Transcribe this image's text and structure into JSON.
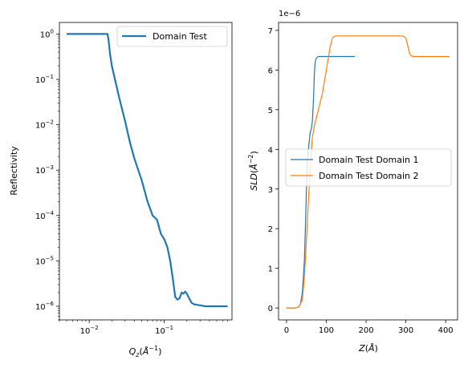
{
  "chart_data": [
    {
      "type": "line",
      "title": "",
      "xlabel": "Q_z(Å^-1)",
      "ylabel": "Reflectivity",
      "xscale": "log",
      "yscale": "log",
      "xlim": [
        0.004,
        0.8
      ],
      "ylim": [
        5e-07,
        1.8
      ],
      "x_ticks": [
        {
          "value": 0.01,
          "base": "10",
          "exp": "−2"
        },
        {
          "value": 0.1,
          "base": "10",
          "exp": "−1"
        }
      ],
      "y_ticks": [
        {
          "value": 1e-06,
          "base": "10",
          "exp": "−6"
        },
        {
          "value": 1e-05,
          "base": "10",
          "exp": "−5"
        },
        {
          "value": 0.0001,
          "base": "10",
          "exp": "−4"
        },
        {
          "value": 0.001,
          "base": "10",
          "exp": "−3"
        },
        {
          "value": 0.01,
          "base": "10",
          "exp": "−2"
        },
        {
          "value": 0.1,
          "base": "10",
          "exp": "−1"
        },
        {
          "value": 1,
          "base": "10",
          "exp": "0"
        }
      ],
      "legend": "upper right",
      "grid": false,
      "series": [
        {
          "name": "Domain Test",
          "color": "#1f77b4",
          "x": [
            0.005,
            0.008,
            0.012,
            0.016,
            0.0175,
            0.018,
            0.019,
            0.02,
            0.022,
            0.025,
            0.03,
            0.035,
            0.04,
            0.05,
            0.06,
            0.065,
            0.07,
            0.075,
            0.08,
            0.09,
            0.1,
            0.11,
            0.12,
            0.13,
            0.14,
            0.15,
            0.16,
            0.17,
            0.18,
            0.185,
            0.19,
            0.2,
            0.21,
            0.22,
            0.23,
            0.25,
            0.3,
            0.35,
            0.4,
            0.5,
            0.6,
            0.7
          ],
          "y": [
            1,
            1,
            1,
            1,
            1,
            0.8,
            0.35,
            0.2,
            0.1,
            0.04,
            0.012,
            0.004,
            0.0018,
            0.0006,
            0.0002,
            0.00014,
            0.0001,
            9e-05,
            8e-05,
            4e-05,
            3e-05,
            2e-05,
            1e-05,
            4e-06,
            1.6e-06,
            1.4e-06,
            1.5e-06,
            2e-06,
            1.9e-06,
            2e-06,
            2.1e-06,
            1.9e-06,
            1.6e-06,
            1.4e-06,
            1.2e-06,
            1.1e-06,
            1.05e-06,
            1e-06,
            1e-06,
            1e-06,
            1e-06,
            1e-06
          ]
        }
      ]
    },
    {
      "type": "line",
      "title": "",
      "xlabel": "Z(Å)",
      "ylabel": "SLD(Å^-2)",
      "offset_label": "1e−6",
      "xlim": [
        -20,
        430
      ],
      "ylim": [
        -0.3,
        7.2
      ],
      "x_ticks": [
        0,
        100,
        200,
        300,
        400
      ],
      "y_ticks": [
        0,
        1,
        2,
        3,
        4,
        5,
        6,
        7
      ],
      "legend": "center right",
      "grid": false,
      "series": [
        {
          "name": "Domain Test Domain 1",
          "color": "#1f77b4",
          "x": [
            0,
            20,
            30,
            35,
            40,
            45,
            48,
            50,
            52,
            55,
            58,
            60,
            62,
            65,
            68,
            70,
            72,
            75,
            78,
            80,
            85,
            90,
            100,
            120,
            150,
            172
          ],
          "y": [
            0,
            0,
            0.02,
            0.1,
            0.4,
            1.2,
            2.2,
            3.0,
            3.6,
            4.0,
            4.3,
            4.45,
            4.5,
            4.7,
            5.3,
            5.9,
            6.2,
            6.3,
            6.33,
            6.34,
            6.34,
            6.34,
            6.34,
            6.34,
            6.34,
            6.34
          ]
        },
        {
          "name": "Domain Test Domain 2",
          "color": "#ff7f0e",
          "x": [
            0,
            20,
            30,
            40,
            45,
            50,
            55,
            60,
            65,
            70,
            80,
            90,
            100,
            110,
            115,
            120,
            125,
            130,
            150,
            200,
            250,
            290,
            295,
            300,
            305,
            310,
            315,
            320,
            350,
            380,
            410
          ],
          "y": [
            0,
            0,
            0.02,
            0.2,
            0.8,
            1.7,
            2.7,
            3.6,
            4.3,
            4.6,
            5.0,
            5.4,
            6.0,
            6.6,
            6.8,
            6.85,
            6.86,
            6.86,
            6.86,
            6.86,
            6.86,
            6.86,
            6.85,
            6.8,
            6.6,
            6.4,
            6.35,
            6.34,
            6.34,
            6.34,
            6.34
          ]
        }
      ]
    }
  ]
}
